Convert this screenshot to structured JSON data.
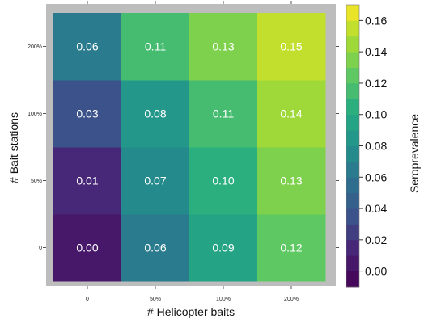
{
  "chart_data": {
    "type": "heatmap",
    "title": "",
    "xlabel": "# Helicopter baits",
    "ylabel": "# Bait stations",
    "x_categories": [
      "0",
      "50%",
      "100%",
      "200%"
    ],
    "y_categories": [
      "0",
      "50%",
      "100%",
      "200%"
    ],
    "values": [
      [
        0.0,
        0.06,
        0.09,
        0.12
      ],
      [
        0.01,
        0.07,
        0.1,
        0.13
      ],
      [
        0.03,
        0.08,
        0.11,
        0.14
      ],
      [
        0.06,
        0.11,
        0.13,
        0.15
      ]
    ],
    "cell_labels": [
      [
        "0.00",
        "0.06",
        "0.09",
        "0.12"
      ],
      [
        "0.01",
        "0.07",
        "0.10",
        "0.13"
      ],
      [
        "0.03",
        "0.08",
        "0.11",
        "0.14"
      ],
      [
        "0.06",
        "0.11",
        "0.13",
        "0.15"
      ]
    ],
    "colorbar": {
      "label": "Seroprevalence",
      "range": [
        -0.01,
        0.17
      ],
      "bins": 18,
      "ticks": [
        0.0,
        0.02,
        0.04,
        0.06,
        0.08,
        0.1,
        0.12,
        0.14,
        0.16
      ],
      "tick_labels": [
        "0.00",
        "0.02",
        "0.04",
        "0.06",
        "0.08",
        "0.10",
        "0.12",
        "0.14",
        "0.16"
      ],
      "colormap": "viridis",
      "placement": "right"
    },
    "frame_color": "#bdbdbd"
  }
}
